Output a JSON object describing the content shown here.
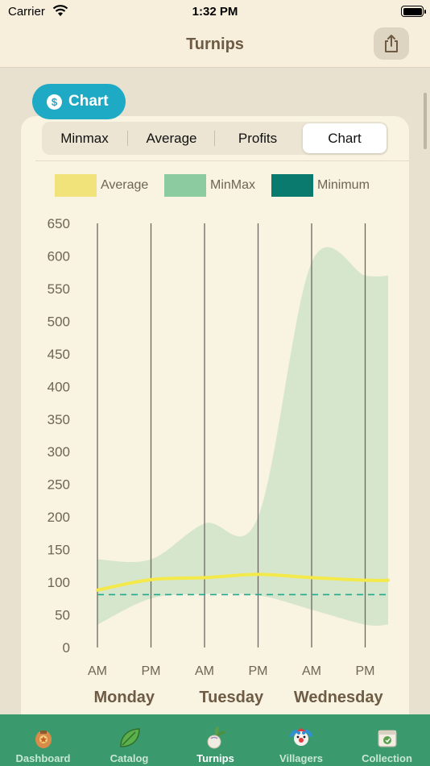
{
  "status_bar": {
    "carrier": "Carrier",
    "time": "1:32 PM"
  },
  "nav": {
    "title": "Turnips",
    "share_icon": "share-icon"
  },
  "section_badge": {
    "label": "Chart",
    "icon": "dollar-coin-icon"
  },
  "segments": [
    {
      "label": "Minmax",
      "selected": false
    },
    {
      "label": "Average",
      "selected": false
    },
    {
      "label": "Profits",
      "selected": false
    },
    {
      "label": "Chart",
      "selected": true
    }
  ],
  "legend": [
    {
      "label": "Average",
      "color": "#f1e37a"
    },
    {
      "label": "MinMax",
      "color": "#8ccaa0"
    },
    {
      "label": "Minimum",
      "color": "#0a7a6e"
    }
  ],
  "chart_data": {
    "type": "area",
    "ylim": [
      0,
      650
    ],
    "yticks": [
      0,
      50,
      100,
      150,
      200,
      250,
      300,
      350,
      400,
      450,
      500,
      550,
      600,
      650
    ],
    "x": [
      0,
      1,
      2,
      3,
      4,
      5
    ],
    "x_tick_labels": [
      "AM",
      "PM",
      "AM",
      "PM",
      "AM",
      "PM"
    ],
    "day_labels": [
      "Monday",
      "Tuesday",
      "Wednesday"
    ],
    "series": [
      {
        "name": "MinMax",
        "kind": "band",
        "color": "#8ccaa0",
        "low": [
          35,
          75,
          82,
          80,
          58,
          35
        ],
        "high": [
          135,
          135,
          190,
          200,
          590,
          570
        ]
      },
      {
        "name": "Average",
        "kind": "line",
        "color": "#f4e94a",
        "values": [
          88,
          104,
          107,
          112,
          107,
          103
        ]
      },
      {
        "name": "Minimum",
        "kind": "dashed",
        "color": "#23a88f",
        "values": [
          81,
          81,
          81,
          81,
          81,
          81
        ]
      }
    ],
    "grid": "vertical"
  },
  "tabs": [
    {
      "label": "Dashboard",
      "icon": "passport-icon",
      "active": false
    },
    {
      "label": "Catalog",
      "icon": "leaf-icon",
      "active": false
    },
    {
      "label": "Turnips",
      "icon": "turnip-icon",
      "active": true
    },
    {
      "label": "Villagers",
      "icon": "villager-icon",
      "active": false
    },
    {
      "label": "Collection",
      "icon": "box-icon",
      "active": false
    }
  ]
}
